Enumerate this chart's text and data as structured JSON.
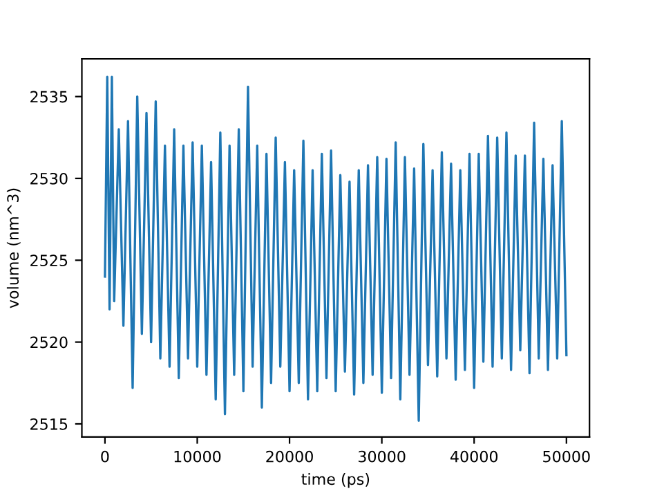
{
  "chart_data": {
    "type": "line",
    "xlabel": "time (ps)",
    "ylabel": "volume (nm^3)",
    "x": [
      0,
      250,
      500,
      750,
      1000,
      1500,
      2000,
      2500,
      3000,
      3500,
      4000,
      4500,
      5000,
      5500,
      6000,
      6500,
      7000,
      7500,
      8000,
      8500,
      9000,
      9500,
      10000,
      10500,
      11000,
      11500,
      12000,
      12500,
      13000,
      13500,
      14000,
      14500,
      15000,
      15500,
      16000,
      16500,
      17000,
      17500,
      18000,
      18500,
      19000,
      19500,
      20000,
      20500,
      21000,
      21500,
      22000,
      22500,
      23000,
      23500,
      24000,
      24500,
      25000,
      25500,
      26000,
      26500,
      27000,
      27500,
      28000,
      28500,
      29000,
      29500,
      30000,
      30500,
      31000,
      31500,
      32000,
      32500,
      33000,
      33500,
      34000,
      34500,
      35000,
      35500,
      36000,
      36500,
      37000,
      37500,
      38000,
      38500,
      39000,
      39500,
      40000,
      40500,
      41000,
      41500,
      42000,
      42500,
      43000,
      43500,
      44000,
      44500,
      45000,
      45500,
      46000,
      46500,
      47000,
      47500,
      48000,
      48500,
      49000,
      49500,
      50000
    ],
    "series": [
      {
        "color": "#1f77b4",
        "values": [
          2524,
          2536.2,
          2522,
          2536.2,
          2522.5,
          2533,
          2521,
          2533.5,
          2517.2,
          2535,
          2520.5,
          2534,
          2520,
          2534.7,
          2519,
          2532,
          2518.5,
          2533,
          2517.8,
          2532,
          2519,
          2532.2,
          2518.5,
          2532,
          2518,
          2531,
          2516.5,
          2532.8,
          2515.6,
          2532,
          2518,
          2533,
          2517,
          2535.6,
          2518.5,
          2532,
          2516,
          2531.5,
          2517.5,
          2532.5,
          2518.5,
          2531,
          2517,
          2530.5,
          2517.5,
          2532.3,
          2516.5,
          2530.5,
          2517,
          2531.5,
          2517.8,
          2531.7,
          2517,
          2530.2,
          2518.2,
          2529.8,
          2516.8,
          2530.5,
          2517.5,
          2530.8,
          2518,
          2531.3,
          2516.9,
          2531.2,
          2517.8,
          2532.2,
          2516.5,
          2531.3,
          2518,
          2530.6,
          2515.2,
          2532.1,
          2518.6,
          2530.5,
          2517.9,
          2531.6,
          2519,
          2530.9,
          2517.7,
          2530.5,
          2518.3,
          2531.5,
          2517.2,
          2531.5,
          2518.8,
          2532.6,
          2518.5,
          2532.5,
          2519,
          2532.8,
          2518.3,
          2531.4,
          2519.5,
          2531.4,
          2518.1,
          2533.4,
          2519,
          2531.2,
          2518.3,
          2530.8,
          2519,
          2533.5,
          2519.2
        ]
      }
    ],
    "xlim": [
      -2500,
      52500
    ],
    "xticks": [
      0,
      10000,
      20000,
      30000,
      40000,
      50000
    ],
    "ylim": [
      2514.2,
      2537.3
    ],
    "yticks": [
      2515,
      2520,
      2525,
      2530,
      2535
    ],
    "grid": false,
    "marker": "none",
    "line_style": "solid"
  }
}
